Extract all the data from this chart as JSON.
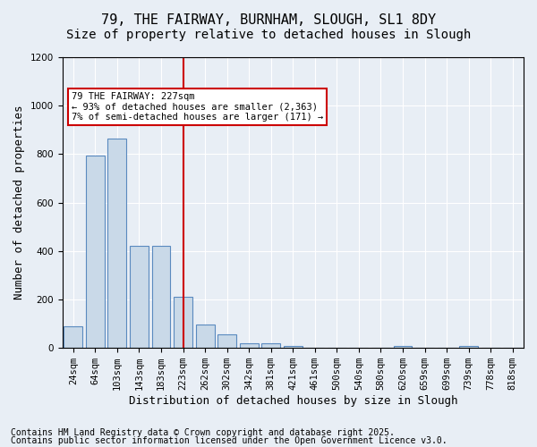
{
  "title1": "79, THE FAIRWAY, BURNHAM, SLOUGH, SL1 8DY",
  "title2": "Size of property relative to detached houses in Slough",
  "xlabel": "Distribution of detached houses by size in Slough",
  "ylabel": "Number of detached properties",
  "categories": [
    "24sqm",
    "64sqm",
    "103sqm",
    "143sqm",
    "183sqm",
    "223sqm",
    "262sqm",
    "302sqm",
    "342sqm",
    "381sqm",
    "421sqm",
    "461sqm",
    "500sqm",
    "540sqm",
    "580sqm",
    "620sqm",
    "659sqm",
    "699sqm",
    "739sqm",
    "778sqm",
    "818sqm"
  ],
  "values": [
    90,
    795,
    865,
    420,
    420,
    210,
    95,
    55,
    20,
    20,
    10,
    0,
    0,
    0,
    0,
    10,
    0,
    0,
    10,
    0,
    0
  ],
  "bar_color": "#c9d9e8",
  "bar_edge_color": "#5a8abf",
  "vline_x": 5.0,
  "vline_color": "#cc0000",
  "annotation_text": "79 THE FAIRWAY: 227sqm\n← 93% of detached houses are smaller (2,363)\n7% of semi-detached houses are larger (171) →",
  "annotation_box_color": "#ffffff",
  "annotation_box_edge": "#cc0000",
  "ylim": [
    0,
    1200
  ],
  "yticks": [
    0,
    200,
    400,
    600,
    800,
    1000,
    1200
  ],
  "footer1": "Contains HM Land Registry data © Crown copyright and database right 2025.",
  "footer2": "Contains public sector information licensed under the Open Government Licence v3.0.",
  "bg_color": "#e8eef5",
  "plot_bg_color": "#e8eef5",
  "title_fontsize": 11,
  "subtitle_fontsize": 10,
  "tick_fontsize": 7.5,
  "label_fontsize": 9,
  "footer_fontsize": 7
}
